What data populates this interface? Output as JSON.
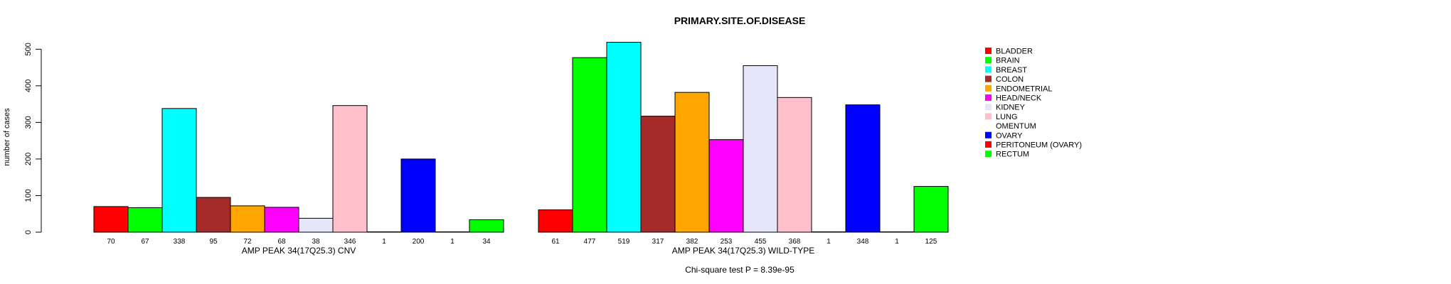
{
  "chart_data": {
    "type": "bar",
    "title": "PRIMARY.SITE.OF.DISEASE",
    "ylabel": "number of cases",
    "ylim": [
      0,
      520
    ],
    "yticks": [
      0,
      100,
      200,
      300,
      400,
      500
    ],
    "footnote": "Chi-square test P = 8.39e-95",
    "legend_position": "right",
    "categories": [
      "BLADDER",
      "BRAIN",
      "BREAST",
      "COLON",
      "ENDOMETRIAL",
      "HEAD/NECK",
      "KIDNEY",
      "LUNG",
      "OMENTUM",
      "OVARY",
      "PERITONEUM (OVARY)",
      "RECTUM"
    ],
    "colors": [
      "#ff0000",
      "#00ff00",
      "#00ffff",
      "#a52a2a",
      "#ffa500",
      "#ff00ff",
      "#e6e6fa",
      "#ffc0cb",
      "#ffffff",
      "#0000ff",
      "#ff0000",
      "#00ff00"
    ],
    "groups": [
      {
        "name": "AMP PEAK 34(17Q25.3) CNV",
        "values": [
          70,
          67,
          338,
          95,
          72,
          68,
          38,
          346,
          1,
          200,
          1,
          34
        ]
      },
      {
        "name": "AMP PEAK 34(17Q25.3) WILD-TYPE",
        "values": [
          61,
          477,
          519,
          317,
          382,
          253,
          455,
          368,
          1,
          348,
          1,
          125
        ]
      }
    ]
  }
}
